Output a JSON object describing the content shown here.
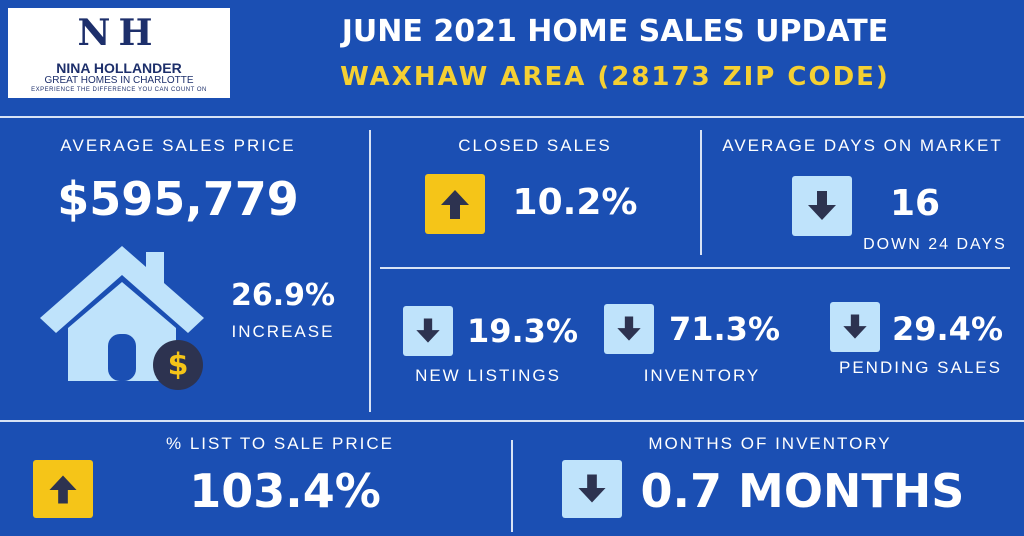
{
  "logo": {
    "initials": "NH",
    "name": "NINA HOLLANDER",
    "tagline": "GREAT HOMES IN CHARLOTTE",
    "motto": "EXPERIENCE THE DIFFERENCE YOU CAN COUNT ON"
  },
  "header": {
    "title": "JUNE 2021 HOME SALES UPDATE",
    "subtitle": "WAXHAW AREA (28173 ZIP CODE)"
  },
  "metrics": [
    {
      "label": "AVERAGE SALES PRICE",
      "value": "$595,779",
      "change": "26.9%",
      "change_label": "INCREASE",
      "icon_text": "$"
    },
    {
      "label": "CLOSED SALES",
      "value": "10.2%",
      "direction": "up"
    },
    {
      "label": "AVERAGE DAYS ON MARKET",
      "value": "16",
      "note": "DOWN 24 DAYS",
      "direction": "down"
    },
    {
      "label": "NEW LISTINGS",
      "value": "19.3%",
      "direction": "down"
    },
    {
      "label": "INVENTORY",
      "value": "71.3%",
      "direction": "down"
    },
    {
      "label": "PENDING SALES",
      "value": "29.4%",
      "direction": "down"
    },
    {
      "label": "% LIST TO SALE PRICE",
      "value": "103.4%",
      "direction": "up"
    },
    {
      "label": "MONTHS OF INVENTORY",
      "value": "0.7 MONTHS",
      "direction": "down"
    }
  ]
}
